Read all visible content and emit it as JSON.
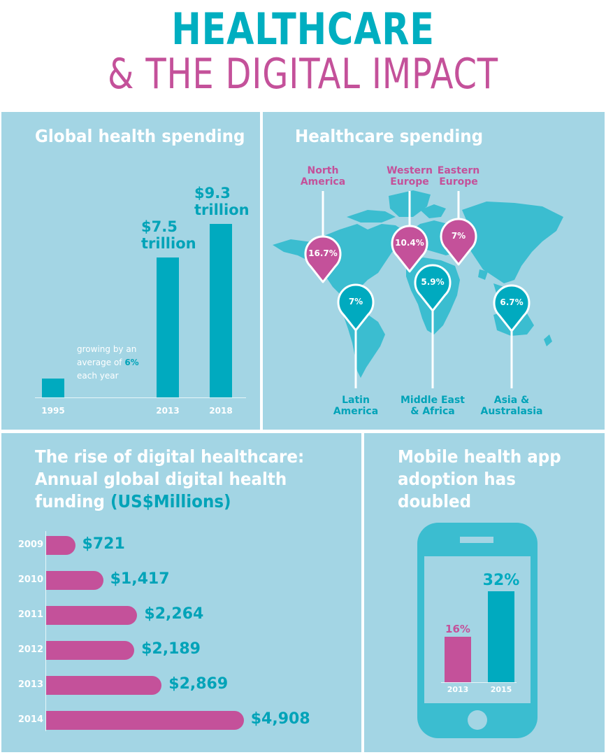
{
  "header": {
    "title": "HEALTHCARE",
    "subtitle": "& THE DIGITAL IMPACT"
  },
  "colors": {
    "teal": "#00aabf",
    "pink": "#c4519a",
    "panel_bg": "#a3d5e4",
    "map_land": "#3bbdd0",
    "white": "#ffffff"
  },
  "chart_data": [
    {
      "type": "bar",
      "title": "Global health spending",
      "categories": [
        "1995",
        "2013",
        "2018"
      ],
      "values": [
        1.0,
        7.5,
        9.3
      ],
      "units": "trillion USD",
      "ylim": [
        0,
        10
      ],
      "data_labels": [
        "",
        "$7.5 trillion",
        "$9.3 trillion"
      ],
      "data_label_lines": [
        [
          "",
          ""
        ],
        [
          "$7.5",
          "trillion"
        ],
        [
          "$9.3",
          "trillion"
        ]
      ],
      "annotation": {
        "line1": "growing by an",
        "line2_prefix": "average of ",
        "highlight": "6%",
        "line3": "each year"
      },
      "grid": false
    },
    {
      "type": "table",
      "title": "Healthcare spending",
      "regions": [
        {
          "name_lines": [
            "North",
            "America"
          ],
          "value": "16.7%",
          "color": "pink"
        },
        {
          "name_lines": [
            "Western",
            "Europe"
          ],
          "value": "10.4%",
          "color": "pink"
        },
        {
          "name_lines": [
            "Eastern",
            "Europe"
          ],
          "value": "7%",
          "color": "pink"
        },
        {
          "name_lines": [
            "Latin",
            "America"
          ],
          "value": "7%",
          "color": "teal"
        },
        {
          "name_lines": [
            "Middle East",
            "& Africa"
          ],
          "value": "5.9%",
          "color": "teal"
        },
        {
          "name_lines": [
            "Asia &",
            "Australasia"
          ],
          "value": "6.7%",
          "color": "teal"
        }
      ]
    },
    {
      "type": "bar",
      "orientation": "horizontal",
      "title": "The rise of digital healthcare: Annual global digital health funding",
      "title_unit": "(US$Millions)",
      "categories": [
        "2009",
        "2010",
        "2011",
        "2012",
        "2013",
        "2014"
      ],
      "values": [
        721,
        1417,
        2264,
        2189,
        2869,
        4908
      ],
      "data_labels": [
        "$721",
        "$1,417",
        "$2,264",
        "$2,189",
        "$2,869",
        "$4,908"
      ],
      "xlim": [
        0,
        5000
      ],
      "grid": false
    },
    {
      "type": "bar",
      "title": "Mobile health app adoption has doubled",
      "categories": [
        "2013",
        "2015"
      ],
      "values": [
        16,
        32
      ],
      "data_labels": [
        "16%",
        "32%"
      ],
      "bar_colors": [
        "#c4519a",
        "#00aabf"
      ],
      "ylim": [
        0,
        40
      ],
      "grid": false
    }
  ]
}
